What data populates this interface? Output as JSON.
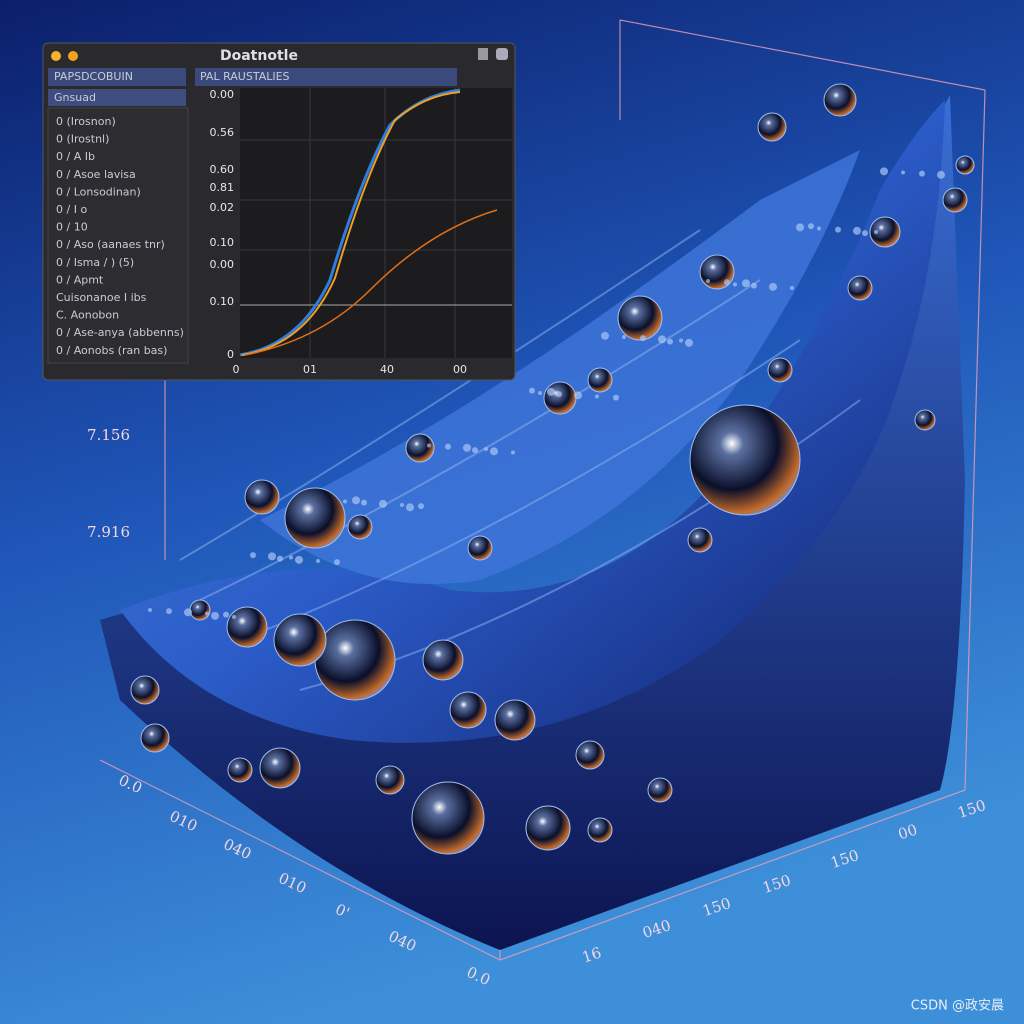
{
  "window": {
    "title": "Doatnotle",
    "toolbar": [
      "PAPSDCOBUIN",
      "PAL RAUSTALIES"
    ],
    "tab": "Gnsuad",
    "sidebar_items": [
      "0 (Irosnon)",
      "0 (Irostnl)",
      "0 / A Ib",
      "0 / Asoe lavisa",
      "0 / Lonsodinan)",
      "0 / I o",
      "0 / 10",
      "0 / Aso (aanaes tnr)",
      "0 / Isma / ) (5)",
      "0 / Apmt",
      "Cuisonanoe I ibs",
      "C. Aonobon",
      "0 / Ase-anya (abbenns)",
      "0 / Aonobs (ran bas)"
    ],
    "plot": {
      "y_labels": [
        "0.00",
        "0.56",
        "0.60",
        "0.81",
        "0.02",
        "0.10",
        "0.00",
        "0.10",
        "0"
      ],
      "x_labels": [
        "0",
        "01",
        "40",
        "00"
      ]
    }
  },
  "scene": {
    "axis_labels_left": [
      "7.156",
      "7.916"
    ],
    "axis_labels_bottom_left": [
      "0.0",
      "010",
      "040",
      "010",
      "0'",
      "040",
      "0.0"
    ],
    "axis_labels_bottom_right": [
      "16",
      "040",
      "150",
      "150",
      "150",
      "00",
      "150"
    ]
  },
  "watermark": "CSDN @政安晨"
}
